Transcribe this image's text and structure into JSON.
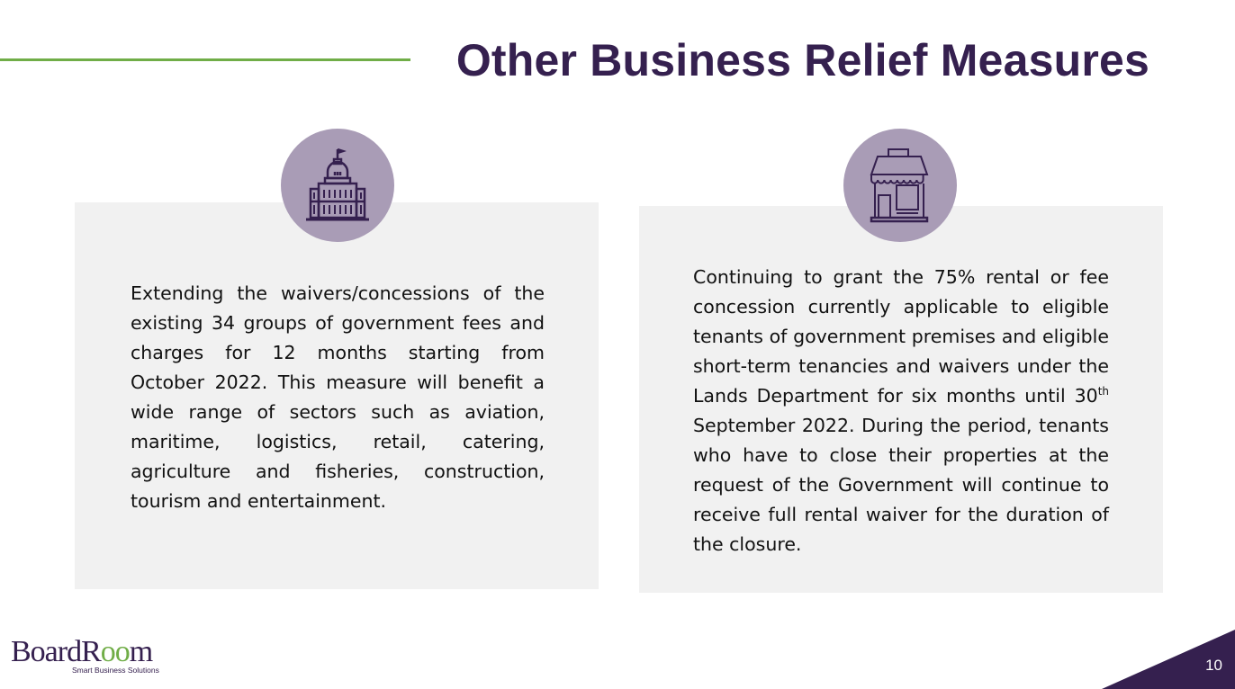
{
  "slide": {
    "title": "Other Business Relief Measures",
    "page_number": "10",
    "colors": {
      "accent_purple": "#35204f",
      "accent_green": "#70ad47",
      "icon_circle": "#a99cb6",
      "panel": "#f1f1f1"
    }
  },
  "cards": [
    {
      "icon": "government-building-icon",
      "text": "Extending the waivers/concessions of the existing 34 groups of government fees and charges for 12 months starting from October 2022. This measure will benefit a wide range of sectors such as aviation, maritime, logistics, retail, catering, agriculture and fisheries, construction, tourism and entertainment."
    },
    {
      "icon": "storefront-icon",
      "text_before_sup": "Continuing to grant the 75% rental or fee concession currently applicable to eligible tenants of government premises and eligible short-term tenancies and waivers under the Lands Department for six months until 30",
      "sup": "th",
      "text_after_sup": " September 2022. During the period, tenants who have to close their properties at the request of the Government will continue to receive full rental waiver for the duration of the closure."
    }
  ],
  "logo": {
    "brand_part1": "BoardR",
    "brand_part2": "oo",
    "brand_part3": "m",
    "tagline": "Smart Business Solutions"
  }
}
